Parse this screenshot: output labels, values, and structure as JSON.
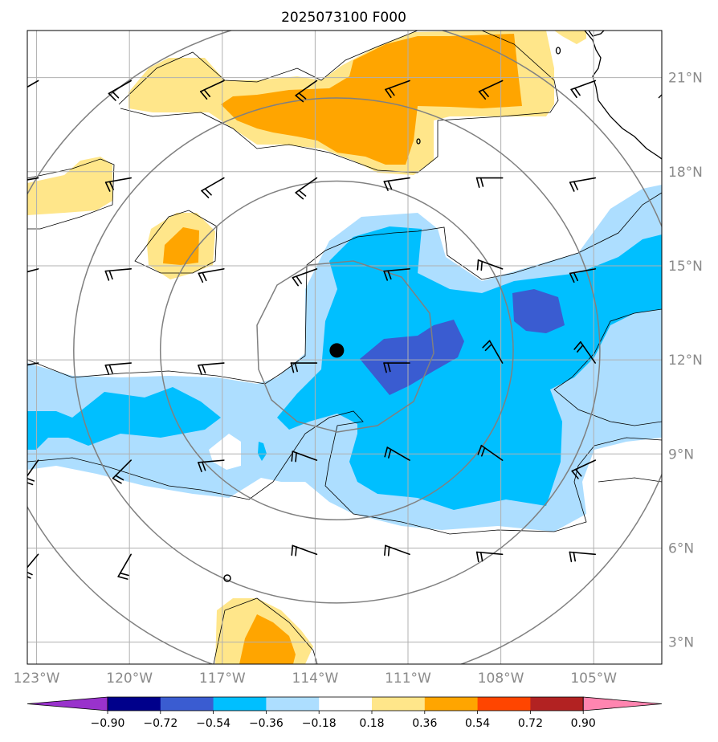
{
  "title": "2025073100 F000",
  "map": {
    "lon_range": [
      -123.3,
      -102.8
    ],
    "lat_range": [
      2.3,
      22.5
    ],
    "x_ticks": [
      {
        "value": -123,
        "label": "123°W"
      },
      {
        "value": -120,
        "label": "120°W"
      },
      {
        "value": -117,
        "label": "117°W"
      },
      {
        "value": -114,
        "label": "114°W"
      },
      {
        "value": -111,
        "label": "111°W"
      },
      {
        "value": -108,
        "label": "108°W"
      },
      {
        "value": -105,
        "label": "105°W"
      }
    ],
    "y_ticks": [
      {
        "value": 21,
        "label": "21°N"
      },
      {
        "value": 18,
        "label": "18°N"
      },
      {
        "value": 15,
        "label": "15°N"
      },
      {
        "value": 12,
        "label": "12°N"
      },
      {
        "value": 9,
        "label": "9°N"
      },
      {
        "value": 6,
        "label": "6°N"
      },
      {
        "value": 3,
        "label": "3°N"
      }
    ],
    "grid": true,
    "storm_center": {
      "lon": -113.3,
      "lat": 12.3
    },
    "range_rings_center": {
      "lon": -113.3,
      "lat": 12.3
    },
    "range_ring_radii_deg": [
      2.9,
      5.7,
      8.5,
      11.3
    ]
  },
  "colorbar": {
    "levels": [
      "−0.90",
      "−0.72",
      "−0.54",
      "−0.36",
      "−0.18",
      "0.18",
      "0.36",
      "0.54",
      "0.72",
      "0.90"
    ],
    "colors": [
      "#9932cc",
      "#00008b",
      "#3a5cd1",
      "#00bfff",
      "#addeff",
      "#ffffff",
      "#ffe68a",
      "#ffa500",
      "#ff4500",
      "#b22222",
      "#ff85b0"
    ],
    "extend": "both"
  },
  "colors": {
    "light_blue": "#addeff",
    "blue": "#00bfff",
    "dark_blue": "#3a5cd1",
    "yellow": "#ffe68a",
    "orange": "#ffa500",
    "grid": "#b0b0b0",
    "ring": "#808080"
  }
}
